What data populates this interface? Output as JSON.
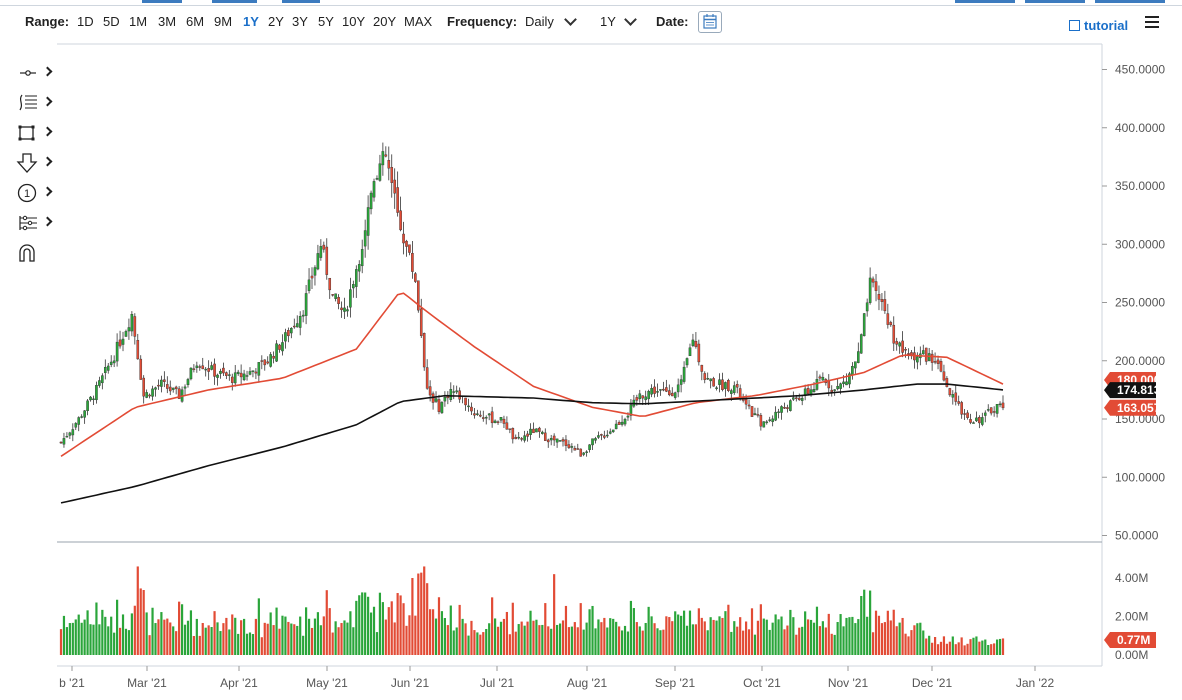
{
  "toolbar": {
    "range_label": "Range:",
    "ranges": [
      "1D",
      "5D",
      "1M",
      "3M",
      "6M",
      "9M",
      "1Y",
      "2Y",
      "3Y",
      "5Y",
      "10Y",
      "20Y",
      "MAX"
    ],
    "active_range": "1Y",
    "frequency_label": "Frequency:",
    "frequency_value": "Daily",
    "period_value": "1Y",
    "date_label": "Date:",
    "tutorial_label": "tutorial"
  },
  "side_tools": [
    "crosshair-tool-icon",
    "fib-levels-tool-icon",
    "rectangle-tool-icon",
    "arrow-down-tool-icon",
    "numbered-marker-tool-icon",
    "pitchfork-tool-icon",
    "magnet-tool-icon"
  ],
  "colors": {
    "up": "#2aa53a",
    "down": "#e24b35",
    "ma_fast": "#e24b35",
    "ma_slow": "#111111",
    "accent": "#1a6fc9",
    "badge_red": "#e24b35",
    "badge_black": "#111111"
  },
  "chart_data": {
    "type": "candlestick",
    "x_labels": [
      "b '21",
      "Mar '21",
      "Apr '21",
      "May '21",
      "Jun '21",
      "Jul '21",
      "Aug '21",
      "Sep '21",
      "Oct '21",
      "Nov '21",
      "Dec '21",
      "Jan '22"
    ],
    "price_axis": {
      "ticks": [
        "450.0000",
        "400.0000",
        "350.0000",
        "300.0000",
        "250.0000",
        "200.0000",
        "150.0000",
        "100.0000",
        "50.0000"
      ],
      "range": [
        50,
        460
      ]
    },
    "volume_axis": {
      "ticks": [
        "4.00M",
        "2.00M",
        "0.00M"
      ],
      "range": [
        0,
        4.6
      ]
    },
    "last_price": "163.0576",
    "ma_slow_last": "174.8135",
    "ma_fast_last": "180.0000",
    "last_volume": "0.77M",
    "price_keypoints": [
      [
        0,
        130
      ],
      [
        6,
        150
      ],
      [
        12,
        175
      ],
      [
        18,
        205
      ],
      [
        24,
        240
      ],
      [
        28,
        170
      ],
      [
        34,
        180
      ],
      [
        40,
        170
      ],
      [
        46,
        200
      ],
      [
        52,
        190
      ],
      [
        58,
        185
      ],
      [
        64,
        190
      ],
      [
        70,
        200
      ],
      [
        76,
        220
      ],
      [
        82,
        245
      ],
      [
        88,
        300
      ],
      [
        92,
        255
      ],
      [
        96,
        240
      ],
      [
        102,
        300
      ],
      [
        106,
        360
      ],
      [
        110,
        375
      ],
      [
        114,
        325
      ],
      [
        120,
        270
      ],
      [
        124,
        175
      ],
      [
        128,
        160
      ],
      [
        132,
        175
      ],
      [
        136,
        168
      ],
      [
        140,
        155
      ],
      [
        146,
        150
      ],
      [
        150,
        148
      ],
      [
        154,
        130
      ],
      [
        160,
        140
      ],
      [
        166,
        132
      ],
      [
        172,
        128
      ],
      [
        176,
        120
      ],
      [
        180,
        130
      ],
      [
        186,
        140
      ],
      [
        192,
        155
      ],
      [
        196,
        170
      ],
      [
        200,
        175
      ],
      [
        206,
        172
      ],
      [
        210,
        180
      ],
      [
        214,
        220
      ],
      [
        218,
        185
      ],
      [
        222,
        180
      ],
      [
        228,
        178
      ],
      [
        232,
        160
      ],
      [
        238,
        145
      ],
      [
        242,
        155
      ],
      [
        248,
        165
      ],
      [
        254,
        175
      ],
      [
        258,
        185
      ],
      [
        262,
        175
      ],
      [
        266,
        183
      ],
      [
        270,
        205
      ],
      [
        274,
        265
      ],
      [
        278,
        250
      ],
      [
        282,
        220
      ],
      [
        286,
        205
      ],
      [
        292,
        205
      ],
      [
        296,
        200
      ],
      [
        300,
        175
      ],
      [
        304,
        160
      ],
      [
        308,
        150
      ],
      [
        312,
        150
      ],
      [
        316,
        160
      ],
      [
        319,
        163
      ]
    ],
    "ma_fast_keypoints": [
      [
        0,
        118
      ],
      [
        25,
        160
      ],
      [
        50,
        175
      ],
      [
        75,
        185
      ],
      [
        100,
        210
      ],
      [
        115,
        260
      ],
      [
        125,
        240
      ],
      [
        140,
        212
      ],
      [
        160,
        178
      ],
      [
        180,
        160
      ],
      [
        197,
        152
      ],
      [
        215,
        164
      ],
      [
        235,
        170
      ],
      [
        255,
        180
      ],
      [
        272,
        190
      ],
      [
        285,
        205
      ],
      [
        300,
        203
      ],
      [
        319,
        180
      ]
    ],
    "ma_slow_keypoints": [
      [
        0,
        78
      ],
      [
        25,
        92
      ],
      [
        50,
        110
      ],
      [
        75,
        126
      ],
      [
        100,
        145
      ],
      [
        115,
        165
      ],
      [
        130,
        170
      ],
      [
        160,
        168
      ],
      [
        180,
        164
      ],
      [
        197,
        163
      ],
      [
        220,
        166
      ],
      [
        250,
        170
      ],
      [
        272,
        175
      ],
      [
        290,
        180
      ],
      [
        300,
        180
      ],
      [
        319,
        175
      ]
    ]
  }
}
